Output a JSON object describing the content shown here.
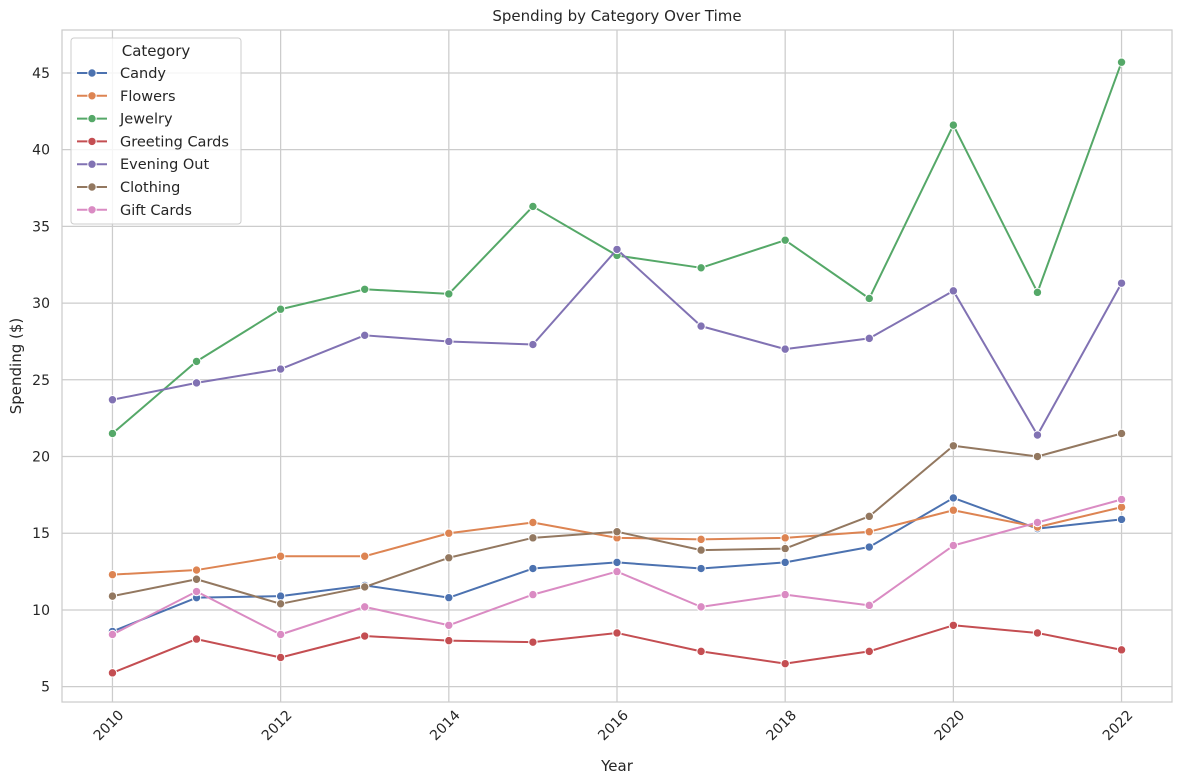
{
  "chart_data": {
    "type": "line",
    "title": "Spending by Category Over Time",
    "xlabel": "Year",
    "ylabel": "Spending ($)",
    "xlim": [
      2009.4,
      2022.6
    ],
    "ylim": [
      4.0,
      47.8
    ],
    "x_ticks": [
      2010,
      2012,
      2014,
      2016,
      2018,
      2020,
      2022
    ],
    "y_ticks": [
      5,
      10,
      15,
      20,
      25,
      30,
      35,
      40,
      45
    ],
    "grid": true,
    "legend": {
      "title": "Category",
      "position": "top-left"
    },
    "x": [
      2010,
      2011,
      2012,
      2013,
      2014,
      2015,
      2016,
      2017,
      2018,
      2019,
      2020,
      2021,
      2022
    ],
    "series": [
      {
        "name": "Candy",
        "color": "#4c72b0",
        "values": [
          8.6,
          10.8,
          10.9,
          11.6,
          10.8,
          12.7,
          13.1,
          12.7,
          13.1,
          14.1,
          17.3,
          15.3,
          15.9
        ]
      },
      {
        "name": "Flowers",
        "color": "#dd8452",
        "values": [
          12.3,
          12.6,
          13.5,
          13.5,
          15.0,
          15.7,
          14.7,
          14.6,
          14.7,
          15.1,
          16.5,
          15.4,
          16.7
        ]
      },
      {
        "name": "Jewelry",
        "color": "#55a868",
        "values": [
          21.5,
          26.2,
          29.6,
          30.9,
          30.6,
          36.3,
          33.1,
          32.3,
          34.1,
          30.3,
          41.6,
          30.7,
          45.7
        ]
      },
      {
        "name": "Greeting Cards",
        "color": "#c44e52",
        "values": [
          5.9,
          8.1,
          6.9,
          8.3,
          8.0,
          7.9,
          8.5,
          7.3,
          6.5,
          7.3,
          9.0,
          8.5,
          7.4
        ]
      },
      {
        "name": "Evening Out",
        "color": "#8172b3",
        "values": [
          23.7,
          24.8,
          25.7,
          27.9,
          27.5,
          27.3,
          33.5,
          28.5,
          27.0,
          27.7,
          30.8,
          21.4,
          31.3
        ]
      },
      {
        "name": "Clothing",
        "color": "#937860",
        "values": [
          10.9,
          12.0,
          10.4,
          11.5,
          13.4,
          14.7,
          15.1,
          13.9,
          14.0,
          16.1,
          20.7,
          20.0,
          21.5
        ]
      },
      {
        "name": "Gift Cards",
        "color": "#da8bc3",
        "values": [
          8.4,
          11.2,
          8.4,
          10.2,
          9.0,
          11.0,
          12.5,
          10.2,
          11.0,
          10.3,
          14.2,
          15.7,
          17.2
        ]
      }
    ]
  }
}
